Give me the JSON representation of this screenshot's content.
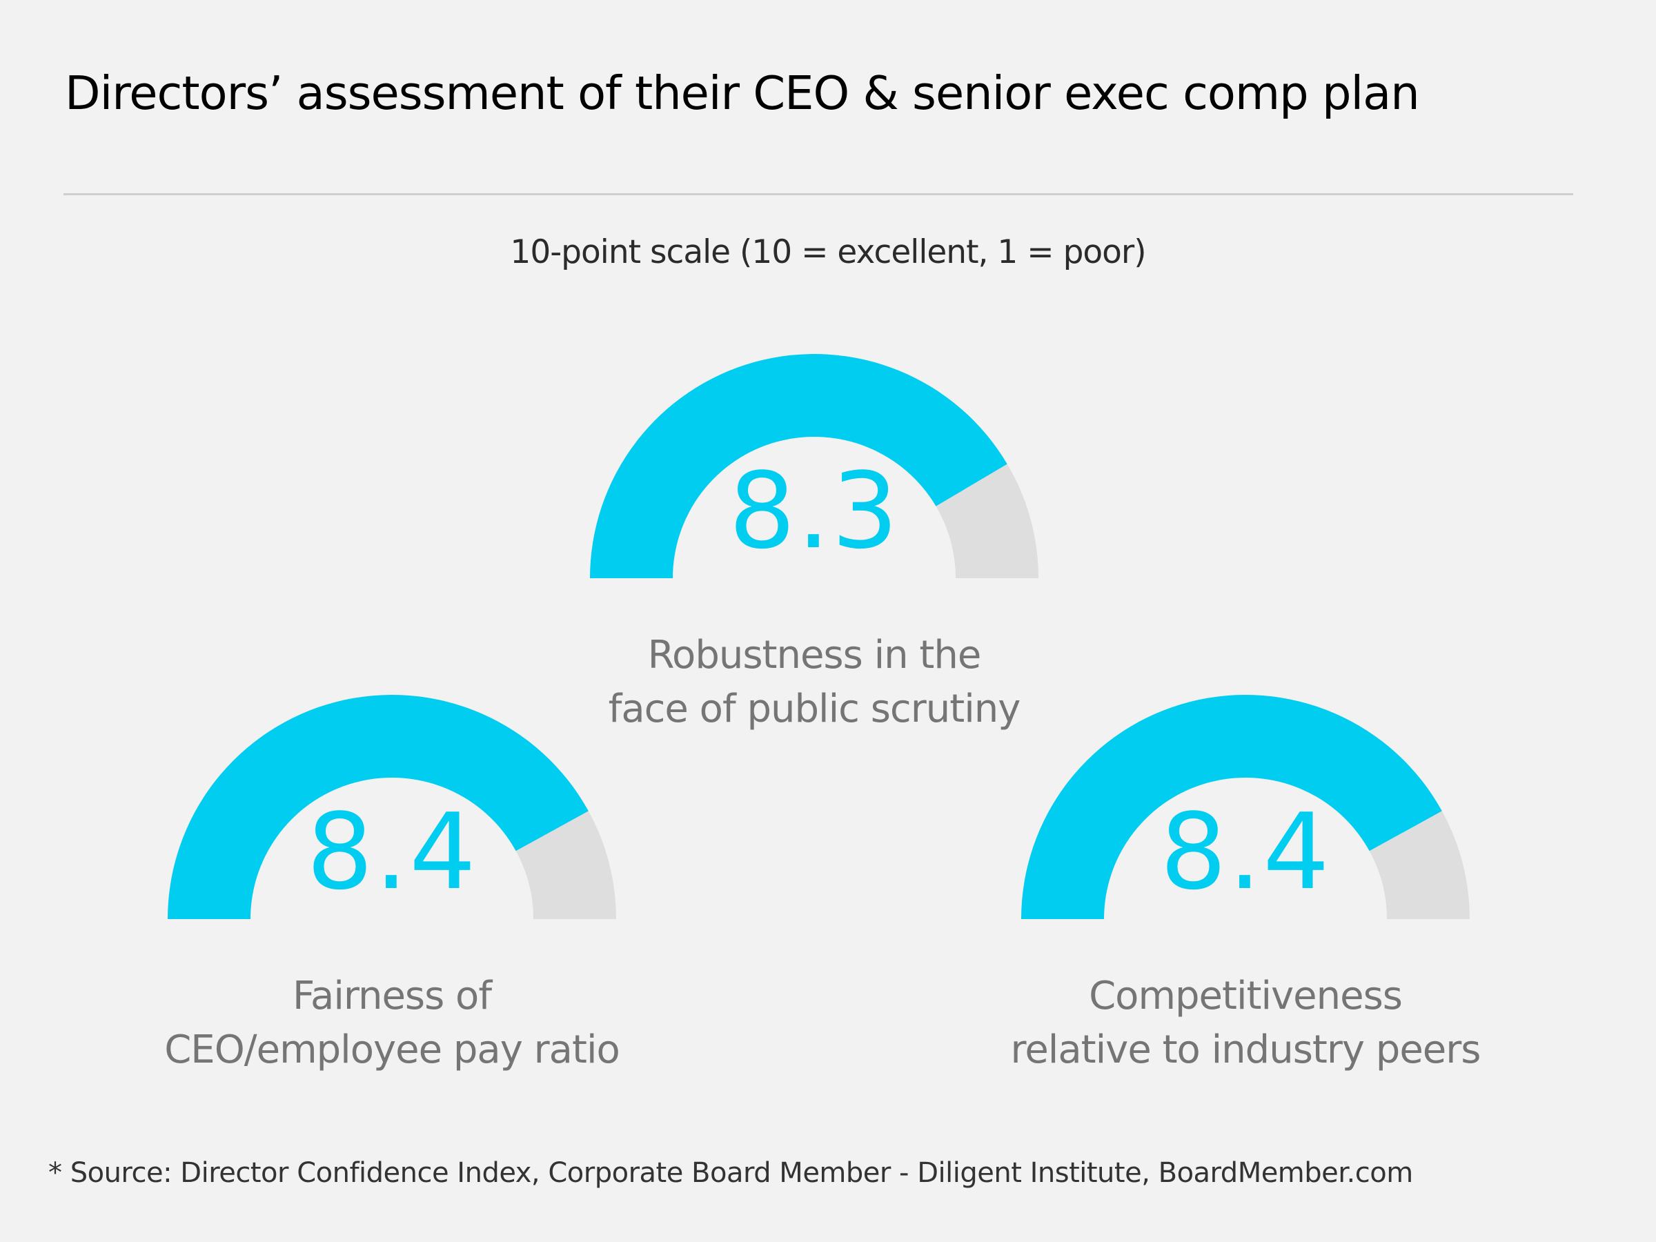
{
  "title": "Directors’ assessment of their CEO & senior exec comp plan",
  "subtitle": "10-point scale (10 = excellent, 1 = poor)",
  "source": "* Source: Director Confidence Index, Corporate Board Member - Diligent Institute, BoardMember.com",
  "colors": {
    "filled": "#00cdf0",
    "remainder": "#dedede",
    "value_text": "#00cdf0",
    "label_text": "#757575"
  },
  "chart_data": {
    "type": "gauge",
    "title": "Directors’ assessment of their CEO & senior exec comp plan",
    "subtitle": "10-point scale (10 = excellent, 1 = poor)",
    "scale": {
      "min": 0,
      "max": 10
    },
    "gauges": [
      {
        "name": "robustness",
        "value": 8.3,
        "value_label": "8.3",
        "label_lines": [
          "Robustness in the",
          "face of public scrutiny"
        ]
      },
      {
        "name": "fairness",
        "value": 8.4,
        "value_label": "8.4",
        "label_lines": [
          "Fairness of",
          "CEO/employee pay ratio"
        ]
      },
      {
        "name": "competitiveness",
        "value": 8.4,
        "value_label": "8.4",
        "label_lines": [
          "Competitiveness",
          "relative to industry peers"
        ]
      }
    ]
  }
}
